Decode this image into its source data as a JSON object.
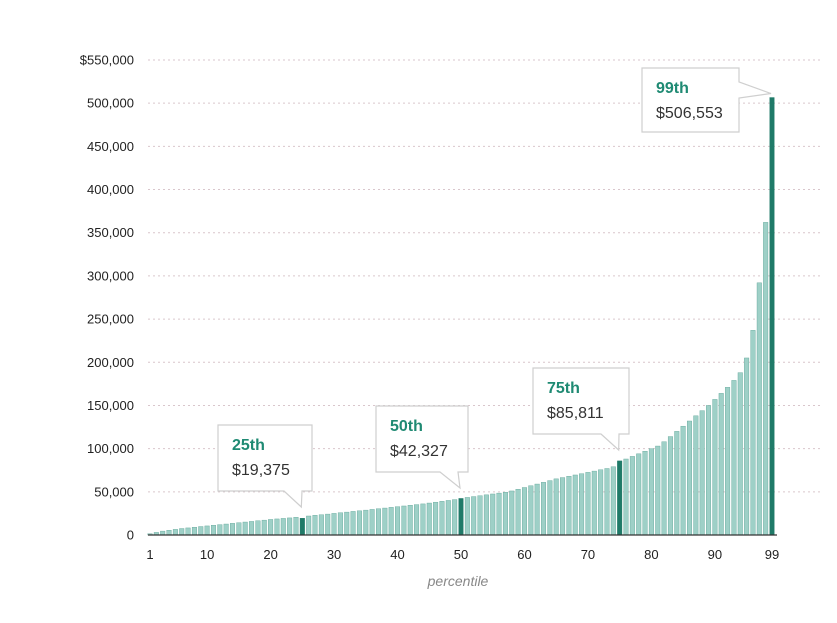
{
  "chart_data": {
    "type": "bar",
    "xlabel": "percentile",
    "ylabel": "",
    "ylim": [
      0,
      550000
    ],
    "grid": true,
    "y_ticks": [
      {
        "value": 0,
        "label": "0"
      },
      {
        "value": 50000,
        "label": "50,000"
      },
      {
        "value": 100000,
        "label": "100,000"
      },
      {
        "value": 150000,
        "label": "150,000"
      },
      {
        "value": 200000,
        "label": "200,000"
      },
      {
        "value": 250000,
        "label": "250,000"
      },
      {
        "value": 300000,
        "label": "300,000"
      },
      {
        "value": 350000,
        "label": "350,000"
      },
      {
        "value": 400000,
        "label": "400,000"
      },
      {
        "value": 450000,
        "label": "450,000"
      },
      {
        "value": 500000,
        "label": "500,000"
      },
      {
        "value": 550000,
        "label": "$550,000"
      }
    ],
    "x_ticks": [
      {
        "value": 1,
        "label": "1"
      },
      {
        "value": 10,
        "label": "10"
      },
      {
        "value": 20,
        "label": "20"
      },
      {
        "value": 30,
        "label": "30"
      },
      {
        "value": 40,
        "label": "40"
      },
      {
        "value": 50,
        "label": "50"
      },
      {
        "value": 60,
        "label": "60"
      },
      {
        "value": 70,
        "label": "70"
      },
      {
        "value": 80,
        "label": "80"
      },
      {
        "value": 90,
        "label": "90"
      },
      {
        "value": 99,
        "label": "99"
      }
    ],
    "categories": [
      1,
      2,
      3,
      4,
      5,
      6,
      7,
      8,
      9,
      10,
      11,
      12,
      13,
      14,
      15,
      16,
      17,
      18,
      19,
      20,
      21,
      22,
      23,
      24,
      25,
      26,
      27,
      28,
      29,
      30,
      31,
      32,
      33,
      34,
      35,
      36,
      37,
      38,
      39,
      40,
      41,
      42,
      43,
      44,
      45,
      46,
      47,
      48,
      49,
      50,
      51,
      52,
      53,
      54,
      55,
      56,
      57,
      58,
      59,
      60,
      61,
      62,
      63,
      64,
      65,
      66,
      67,
      68,
      69,
      70,
      71,
      72,
      73,
      74,
      75,
      76,
      77,
      78,
      79,
      80,
      81,
      82,
      83,
      84,
      85,
      86,
      87,
      88,
      89,
      90,
      91,
      92,
      93,
      94,
      95,
      96,
      97,
      98,
      99
    ],
    "values": [
      1500,
      3000,
      4500,
      5500,
      6500,
      7500,
      8200,
      9000,
      9800,
      10500,
      11300,
      12000,
      12700,
      13500,
      14200,
      15000,
      15700,
      16500,
      17200,
      18000,
      18600,
      19200,
      19800,
      20500,
      19375,
      22000,
      22800,
      23500,
      24200,
      25000,
      25800,
      26500,
      27300,
      28000,
      28800,
      29600,
      30400,
      31200,
      32000,
      32800,
      33600,
      34400,
      35200,
      36000,
      37000,
      38000,
      39000,
      40000,
      41000,
      42327,
      43500,
      44500,
      45500,
      46500,
      47500,
      48500,
      49500,
      51000,
      53000,
      55000,
      57000,
      59000,
      61000,
      63000,
      65000,
      66500,
      68000,
      69500,
      71000,
      72500,
      74000,
      75500,
      77000,
      79000,
      85811,
      88000,
      91000,
      94000,
      97000,
      100000,
      103000,
      108000,
      114000,
      120000,
      126000,
      132000,
      138000,
      144000,
      150000,
      157000,
      164000,
      171000,
      179000,
      188000,
      205000,
      237000,
      292000,
      362000,
      506553
    ],
    "highlighted": [
      {
        "percentile": 25,
        "rank_label": "25th",
        "value_label": "$19,375"
      },
      {
        "percentile": 50,
        "rank_label": "50th",
        "value_label": "$42,327"
      },
      {
        "percentile": 75,
        "rank_label": "75th",
        "value_label": "$85,811"
      },
      {
        "percentile": 99,
        "rank_label": "99th",
        "value_label": "$506,553"
      }
    ],
    "colors": {
      "bar": "#9ed0c7",
      "bar_edge": "#5fa597",
      "highlight": "#1f7a68",
      "callout_text": "#1f8a73",
      "grid": "#d9c6cc",
      "axis": "#333333"
    }
  }
}
